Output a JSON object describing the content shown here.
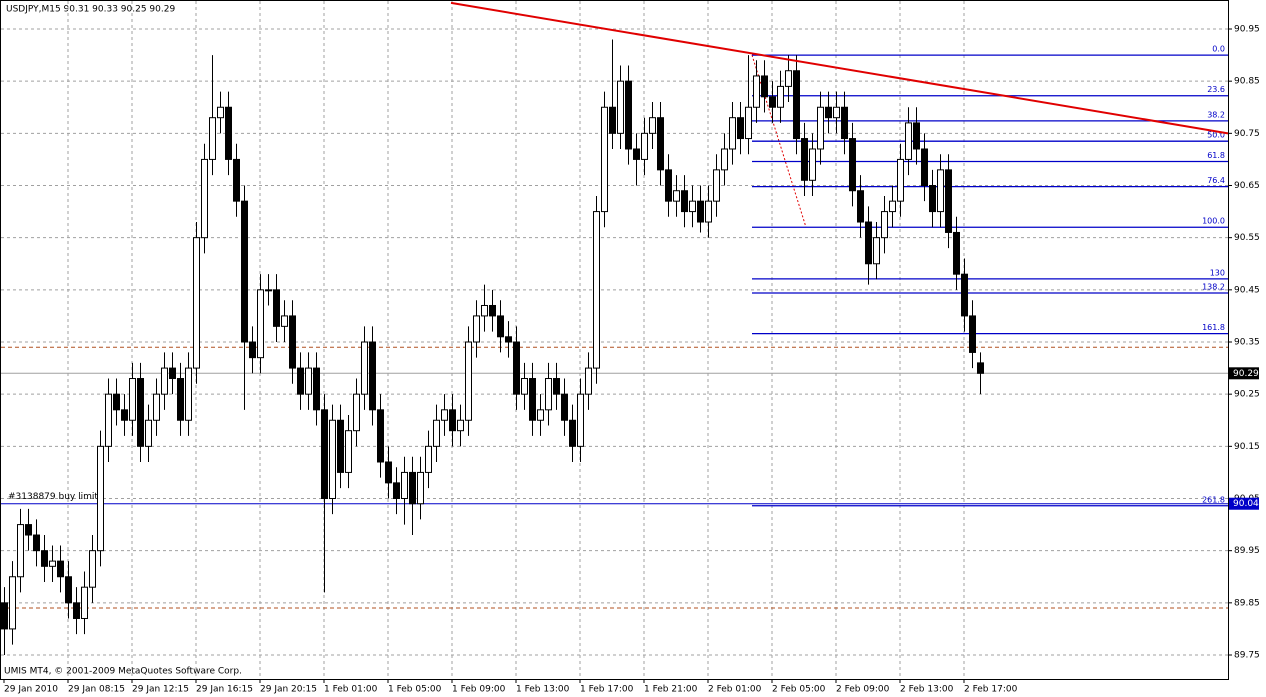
{
  "chart_data": {
    "type": "candlestick",
    "title": "USDJPY,M15  90.31 90.33 90.25 90.29",
    "copyright": "UMIS MT4, © 2001-2009 MetaQuotes Software Corp.",
    "categories": [
      "29 Jan 2010",
      null,
      null,
      null,
      null,
      null,
      null,
      null,
      "29 Jan 08:15",
      null,
      null,
      null,
      null,
      null,
      null,
      null,
      "29 Jan 12:15",
      null,
      null,
      null,
      null,
      null,
      null,
      null,
      "29 Jan 16:15",
      null,
      null,
      null,
      null,
      null,
      null,
      null,
      "29 Jan 20:15",
      null,
      null,
      null,
      null,
      null,
      null,
      null,
      "1 Feb 01:00",
      null,
      null,
      null,
      null,
      null,
      null,
      null,
      "1 Feb 05:00",
      null,
      null,
      null,
      null,
      null,
      null,
      null,
      "1 Feb 09:00",
      null,
      null,
      null,
      null,
      null,
      null,
      null,
      "1 Feb 13:00",
      null,
      null,
      null,
      null,
      null,
      null,
      null,
      "1 Feb 17:00",
      null,
      null,
      null,
      null,
      null,
      null,
      null,
      "1 Feb 21:00",
      null,
      null,
      null,
      null,
      null,
      null,
      null,
      "2 Feb 01:00",
      null,
      null,
      null,
      null,
      null,
      null,
      null,
      "2 Feb 05:00",
      null,
      null,
      null,
      null,
      null,
      null,
      null,
      "2 Feb 09:00",
      null,
      null,
      null,
      null,
      null,
      null,
      null,
      "2 Feb 13:00",
      null,
      null,
      null,
      null,
      null,
      null,
      null,
      "2 Feb 17:00",
      null,
      null
    ],
    "open": [
      89.85,
      89.8,
      89.9,
      90.0,
      89.98,
      89.95,
      89.92,
      89.93,
      89.9,
      89.85,
      89.82,
      89.88,
      89.95,
      90.15,
      90.25,
      90.22,
      90.2,
      90.28,
      90.15,
      90.2,
      90.25,
      90.3,
      90.28,
      90.2,
      90.3,
      90.55,
      90.7,
      90.78,
      90.8,
      90.7,
      90.62,
      90.35,
      90.32,
      90.45,
      90.45,
      90.38,
      90.4,
      90.3,
      90.25,
      90.3,
      90.22,
      90.05,
      90.2,
      90.1,
      90.18,
      90.25,
      90.35,
      90.22,
      90.12,
      90.08,
      90.05,
      90.1,
      90.04,
      90.1,
      90.15,
      90.2,
      90.22,
      90.18,
      90.2,
      90.35,
      90.4,
      90.42,
      90.4,
      90.36,
      90.35,
      90.25,
      90.28,
      90.2,
      90.22,
      90.28,
      90.25,
      90.2,
      90.15,
      90.25,
      90.3,
      90.6,
      90.8,
      90.75,
      90.85,
      90.72,
      90.7,
      90.75,
      90.78,
      90.68,
      90.62,
      90.64,
      90.6,
      90.62,
      90.58,
      90.62,
      90.68,
      90.72,
      90.78,
      90.74,
      90.8,
      90.86,
      90.82,
      90.8,
      90.84,
      90.87,
      90.74,
      90.66,
      90.72,
      90.8,
      90.78,
      90.8,
      90.74,
      90.64,
      90.58,
      90.5,
      90.55,
      90.6,
      90.62,
      90.7,
      90.77,
      90.72,
      90.65,
      90.6,
      90.68,
      90.56,
      90.48,
      90.4,
      90.31
    ],
    "high": [
      89.88,
      89.93,
      90.03,
      90.03,
      90.01,
      89.98,
      89.96,
      89.96,
      89.93,
      89.88,
      89.91,
      89.98,
      90.18,
      90.28,
      90.28,
      90.25,
      90.31,
      90.31,
      90.23,
      90.28,
      90.33,
      90.33,
      90.31,
      90.33,
      90.58,
      90.73,
      90.9,
      90.83,
      90.83,
      90.73,
      90.65,
      90.38,
      90.48,
      90.48,
      90.48,
      90.43,
      90.43,
      90.33,
      90.33,
      90.33,
      90.25,
      90.23,
      90.23,
      90.21,
      90.28,
      90.38,
      90.38,
      90.25,
      90.15,
      90.11,
      90.13,
      90.13,
      90.13,
      90.18,
      90.23,
      90.25,
      90.25,
      90.23,
      90.38,
      90.43,
      90.46,
      90.45,
      90.43,
      90.39,
      90.38,
      90.31,
      90.31,
      90.25,
      90.31,
      90.31,
      90.28,
      90.23,
      90.28,
      90.33,
      90.63,
      90.83,
      90.93,
      90.88,
      90.88,
      90.75,
      90.78,
      90.81,
      90.81,
      90.71,
      90.67,
      90.67,
      90.65,
      90.65,
      90.65,
      90.71,
      90.75,
      90.81,
      90.81,
      90.9,
      90.89,
      90.89,
      90.85,
      90.87,
      90.9,
      90.9,
      90.77,
      90.75,
      90.83,
      90.83,
      90.83,
      90.83,
      90.77,
      90.67,
      90.61,
      90.58,
      90.63,
      90.65,
      90.73,
      90.8,
      90.8,
      90.75,
      90.68,
      90.71,
      90.71,
      90.59,
      90.51,
      90.43,
      90.33
    ],
    "low": [
      89.75,
      89.77,
      89.87,
      89.95,
      89.92,
      89.89,
      89.89,
      89.87,
      89.82,
      89.79,
      89.79,
      89.85,
      89.92,
      90.12,
      90.19,
      90.17,
      90.17,
      90.12,
      90.12,
      90.17,
      90.22,
      90.25,
      90.17,
      90.17,
      90.27,
      90.52,
      90.67,
      90.75,
      90.67,
      90.59,
      90.22,
      90.29,
      90.29,
      90.42,
      90.35,
      90.35,
      90.27,
      90.22,
      90.22,
      90.19,
      89.87,
      90.02,
      90.07,
      90.07,
      90.15,
      90.22,
      90.19,
      90.09,
      90.05,
      90.02,
      90.0,
      89.98,
      90.01,
      90.07,
      90.12,
      90.17,
      90.15,
      90.15,
      90.17,
      90.32,
      90.37,
      90.37,
      90.33,
      90.32,
      90.22,
      90.22,
      90.17,
      90.17,
      90.19,
      90.22,
      90.17,
      90.12,
      90.12,
      90.22,
      90.27,
      90.57,
      90.72,
      90.72,
      90.69,
      90.65,
      90.67,
      90.72,
      90.65,
      90.59,
      90.59,
      90.57,
      90.57,
      90.56,
      90.55,
      90.59,
      90.65,
      90.69,
      90.71,
      90.71,
      90.77,
      90.79,
      90.77,
      90.77,
      90.81,
      90.71,
      90.63,
      90.63,
      90.69,
      90.75,
      90.75,
      90.71,
      90.61,
      90.55,
      90.46,
      90.47,
      90.52,
      90.57,
      90.59,
      90.67,
      90.69,
      90.62,
      90.57,
      90.57,
      90.53,
      90.45,
      90.37,
      90.3,
      90.25
    ],
    "close": [
      89.8,
      89.9,
      90.0,
      89.98,
      89.95,
      89.92,
      89.93,
      89.9,
      89.85,
      89.82,
      89.88,
      89.95,
      90.15,
      90.25,
      90.22,
      90.2,
      90.28,
      90.15,
      90.2,
      90.25,
      90.3,
      90.28,
      90.2,
      90.3,
      90.55,
      90.7,
      90.78,
      90.8,
      90.7,
      90.62,
      90.35,
      90.32,
      90.45,
      90.45,
      90.38,
      90.4,
      90.3,
      90.25,
      90.3,
      90.22,
      90.05,
      90.2,
      90.1,
      90.18,
      90.25,
      90.35,
      90.22,
      90.12,
      90.08,
      90.05,
      90.1,
      90.04,
      90.1,
      90.15,
      90.2,
      90.22,
      90.18,
      90.2,
      90.35,
      90.4,
      90.42,
      90.4,
      90.36,
      90.35,
      90.25,
      90.28,
      90.2,
      90.22,
      90.28,
      90.25,
      90.2,
      90.15,
      90.25,
      90.3,
      90.6,
      90.8,
      90.75,
      90.85,
      90.72,
      90.7,
      90.75,
      90.78,
      90.68,
      90.62,
      90.64,
      90.6,
      90.62,
      90.58,
      90.62,
      90.68,
      90.72,
      90.78,
      90.74,
      90.8,
      90.86,
      90.82,
      90.8,
      90.84,
      90.87,
      90.74,
      90.66,
      90.72,
      90.8,
      90.78,
      90.8,
      90.74,
      90.64,
      90.58,
      90.5,
      90.55,
      90.6,
      90.62,
      90.7,
      90.77,
      90.72,
      90.65,
      90.6,
      90.68,
      90.56,
      90.48,
      90.4,
      90.33,
      90.29
    ],
    "ylim": [
      89.704,
      91.0056
    ],
    "yticks": [
      90.95,
      90.85,
      90.75,
      90.65,
      90.55,
      90.45,
      90.35,
      90.25,
      90.15,
      90.05,
      89.95,
      89.85,
      89.75
    ],
    "grid": true,
    "up_color": "#ffffff",
    "down_color": "#000000",
    "trendline": {
      "x": [
        55.875,
        153
      ],
      "y": [
        91.0,
        90.75
      ],
      "color": "#e00000"
    },
    "fibonacci": {
      "x": [
        93.5,
        100.25
      ],
      "y": [
        90.9,
        90.57
      ],
      "color": "#0000c8",
      "levels": [
        {
          "value": 0,
          "label": "0.0"
        },
        23.6,
        38.2,
        {
          "value": 50,
          "label": "50.0"
        },
        61.8,
        76.4,
        {
          "value": 100,
          "label": "100.0"
        },
        130,
        138.2,
        161.8,
        261.8
      ]
    },
    "hlines": [
      90.34,
      89.84
    ],
    "hline_color": "#b05020",
    "bid": 90.29,
    "order": {
      "label": "#3138879 buy limit",
      "price": 90.04,
      "color": "#0000c8"
    }
  }
}
